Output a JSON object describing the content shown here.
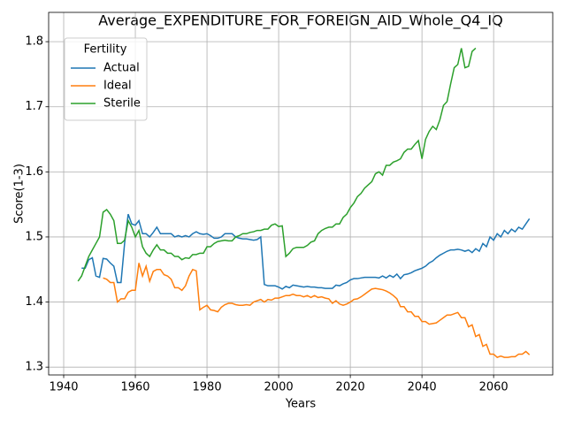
{
  "chart_data": {
    "type": "line",
    "title": "Average_EXPENDITURE_FOR_FOREIGN_AID_Whole_Q4_IQ",
    "x_label": "Years",
    "y_label": "Score(1-3)",
    "legend_title": "Fertility",
    "legend": "upper left",
    "grid": true,
    "xlim": [
      1935.8,
      2076.5
    ],
    "ylim": [
      1.288,
      1.845
    ],
    "xticks": [
      1940,
      1960,
      1980,
      2000,
      2020,
      2040,
      2060
    ],
    "yticks": [
      1.3,
      1.4,
      1.5,
      1.6,
      1.7,
      1.8
    ],
    "x": [
      1944,
      1945,
      1946,
      1947,
      1948,
      1949,
      1950,
      1951,
      1952,
      1953,
      1954,
      1955,
      1956,
      1957,
      1958,
      1959,
      1960,
      1961,
      1962,
      1963,
      1964,
      1965,
      1966,
      1967,
      1968,
      1969,
      1970,
      1971,
      1972,
      1973,
      1974,
      1975,
      1976,
      1977,
      1978,
      1979,
      1980,
      1981,
      1982,
      1983,
      1984,
      1985,
      1986,
      1987,
      1988,
      1989,
      1990,
      1991,
      1992,
      1993,
      1994,
      1995,
      1996,
      1997,
      1998,
      1999,
      2000,
      2001,
      2002,
      2003,
      2004,
      2005,
      2006,
      2007,
      2008,
      2009,
      2010,
      2011,
      2012,
      2013,
      2014,
      2015,
      2016,
      2017,
      2018,
      2019,
      2020,
      2021,
      2022,
      2023,
      2024,
      2025,
      2026,
      2027,
      2028,
      2029,
      2030,
      2031,
      2032,
      2033,
      2034,
      2035,
      2036,
      2037,
      2038,
      2039,
      2040,
      2041,
      2042,
      2043,
      2044,
      2045,
      2046,
      2047,
      2048,
      2049,
      2050,
      2051,
      2052,
      2053,
      2054,
      2055,
      2056,
      2057,
      2058,
      2059,
      2060,
      2061,
      2062,
      2063,
      2064,
      2065,
      2066,
      2067,
      2068,
      2069,
      2070
    ],
    "series": [
      {
        "name": "Actual",
        "color": "#1f77b4",
        "values": [
          null,
          1.452,
          1.452,
          1.465,
          1.468,
          1.44,
          1.438,
          1.467,
          1.466,
          1.46,
          1.455,
          1.43,
          1.43,
          1.49,
          1.535,
          1.52,
          1.518,
          1.525,
          1.505,
          1.505,
          1.5,
          1.507,
          1.515,
          1.505,
          1.505,
          1.505,
          1.505,
          1.5,
          1.502,
          1.5,
          1.502,
          1.5,
          1.505,
          1.508,
          1.505,
          1.504,
          1.505,
          1.502,
          1.498,
          1.498,
          1.5,
          1.505,
          1.505,
          1.505,
          1.5,
          1.498,
          1.497,
          1.497,
          1.496,
          1.495,
          1.496,
          1.5,
          1.427,
          1.425,
          1.425,
          1.425,
          1.423,
          1.42,
          1.424,
          1.422,
          1.426,
          1.425,
          1.424,
          1.423,
          1.424,
          1.423,
          1.423,
          1.422,
          1.422,
          1.421,
          1.421,
          1.421,
          1.426,
          1.425,
          1.428,
          1.43,
          1.434,
          1.436,
          1.436,
          1.437,
          1.438,
          1.438,
          1.438,
          1.438,
          1.437,
          1.44,
          1.437,
          1.441,
          1.438,
          1.443,
          1.436,
          1.442,
          1.443,
          1.445,
          1.448,
          1.45,
          1.452,
          1.455,
          1.46,
          1.463,
          1.468,
          1.472,
          1.475,
          1.478,
          1.48,
          1.48,
          1.481,
          1.48,
          1.478,
          1.48,
          1.476,
          1.482,
          1.478,
          1.49,
          1.485,
          1.5,
          1.495,
          1.505,
          1.5,
          1.51,
          1.505,
          1.512,
          1.508,
          1.515,
          1.512,
          1.52,
          1.528
        ]
      },
      {
        "name": "Ideal",
        "color": "#ff7f0e",
        "values": [
          null,
          null,
          null,
          null,
          null,
          null,
          null,
          1.437,
          1.435,
          1.43,
          1.43,
          1.4,
          1.405,
          1.405,
          1.415,
          1.418,
          1.418,
          1.46,
          1.44,
          1.455,
          1.432,
          1.447,
          1.45,
          1.45,
          1.442,
          1.44,
          1.435,
          1.422,
          1.422,
          1.418,
          1.425,
          1.44,
          1.45,
          1.448,
          1.388,
          1.392,
          1.395,
          1.388,
          1.387,
          1.385,
          1.392,
          1.396,
          1.398,
          1.398,
          1.396,
          1.395,
          1.395,
          1.396,
          1.395,
          1.4,
          1.402,
          1.404,
          1.4,
          1.404,
          1.403,
          1.406,
          1.406,
          1.408,
          1.41,
          1.41,
          1.412,
          1.41,
          1.41,
          1.408,
          1.41,
          1.407,
          1.41,
          1.407,
          1.408,
          1.406,
          1.405,
          1.398,
          1.402,
          1.397,
          1.395,
          1.397,
          1.4,
          1.404,
          1.405,
          1.408,
          1.412,
          1.416,
          1.42,
          1.421,
          1.42,
          1.419,
          1.417,
          1.414,
          1.41,
          1.405,
          1.393,
          1.393,
          1.385,
          1.385,
          1.378,
          1.378,
          1.37,
          1.37,
          1.366,
          1.367,
          1.368,
          1.372,
          1.376,
          1.38,
          1.38,
          1.382,
          1.384,
          1.376,
          1.376,
          1.362,
          1.365,
          1.347,
          1.35,
          1.332,
          1.335,
          1.32,
          1.32,
          1.315,
          1.317,
          1.315,
          1.315,
          1.316,
          1.316,
          1.32,
          1.32,
          1.324,
          1.319
        ]
      },
      {
        "name": "Sterile",
        "color": "#2ca02c",
        "values": [
          1.432,
          1.44,
          1.455,
          1.47,
          1.48,
          1.49,
          1.5,
          1.538,
          1.542,
          1.535,
          1.525,
          1.49,
          1.49,
          1.495,
          1.525,
          1.515,
          1.5,
          1.51,
          1.485,
          1.475,
          1.47,
          1.48,
          1.488,
          1.48,
          1.48,
          1.475,
          1.475,
          1.47,
          1.47,
          1.465,
          1.468,
          1.467,
          1.473,
          1.473,
          1.475,
          1.475,
          1.485,
          1.485,
          1.49,
          1.493,
          1.494,
          1.495,
          1.494,
          1.494,
          1.5,
          1.502,
          1.505,
          1.505,
          1.507,
          1.508,
          1.51,
          1.51,
          1.512,
          1.512,
          1.518,
          1.52,
          1.516,
          1.517,
          1.47,
          1.475,
          1.482,
          1.484,
          1.484,
          1.484,
          1.487,
          1.492,
          1.494,
          1.505,
          1.51,
          1.513,
          1.515,
          1.515,
          1.52,
          1.52,
          1.53,
          1.535,
          1.545,
          1.552,
          1.562,
          1.567,
          1.575,
          1.58,
          1.585,
          1.597,
          1.6,
          1.595,
          1.61,
          1.61,
          1.615,
          1.617,
          1.62,
          1.63,
          1.635,
          1.635,
          1.642,
          1.648,
          1.62,
          1.65,
          1.662,
          1.67,
          1.665,
          1.68,
          1.702,
          1.708,
          1.735,
          1.76,
          1.765,
          1.79,
          1.76,
          1.762,
          1.785,
          1.79,
          null,
          null,
          null,
          null,
          null,
          null,
          null,
          null,
          null,
          null,
          null,
          null,
          null,
          null,
          null
        ]
      }
    ]
  }
}
